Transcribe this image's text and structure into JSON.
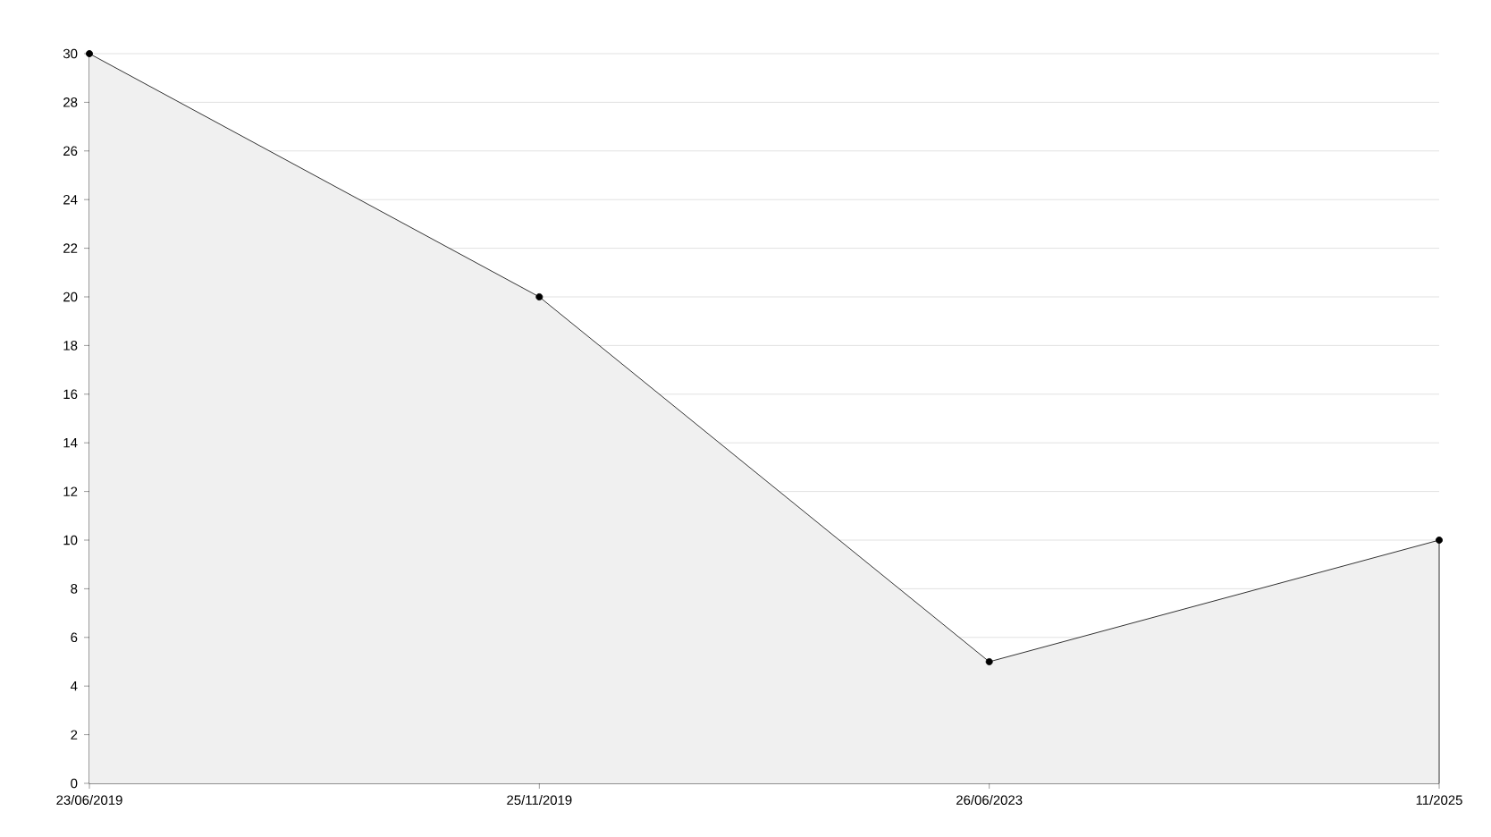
{
  "chart_data": {
    "type": "area",
    "categories": [
      "23/06/2019",
      "25/11/2019",
      "26/06/2023",
      "11/2025"
    ],
    "series": [
      {
        "color": "#f0f0f0",
        "values": [
          30,
          20,
          5,
          10
        ]
      }
    ],
    "ylim": [
      0,
      30
    ],
    "yticks": [
      0,
      2,
      4,
      6,
      8,
      10,
      12,
      14,
      16,
      18,
      20,
      22,
      24,
      26,
      28,
      30
    ],
    "grid": "y",
    "marker": "circle",
    "line_style": "solid"
  }
}
